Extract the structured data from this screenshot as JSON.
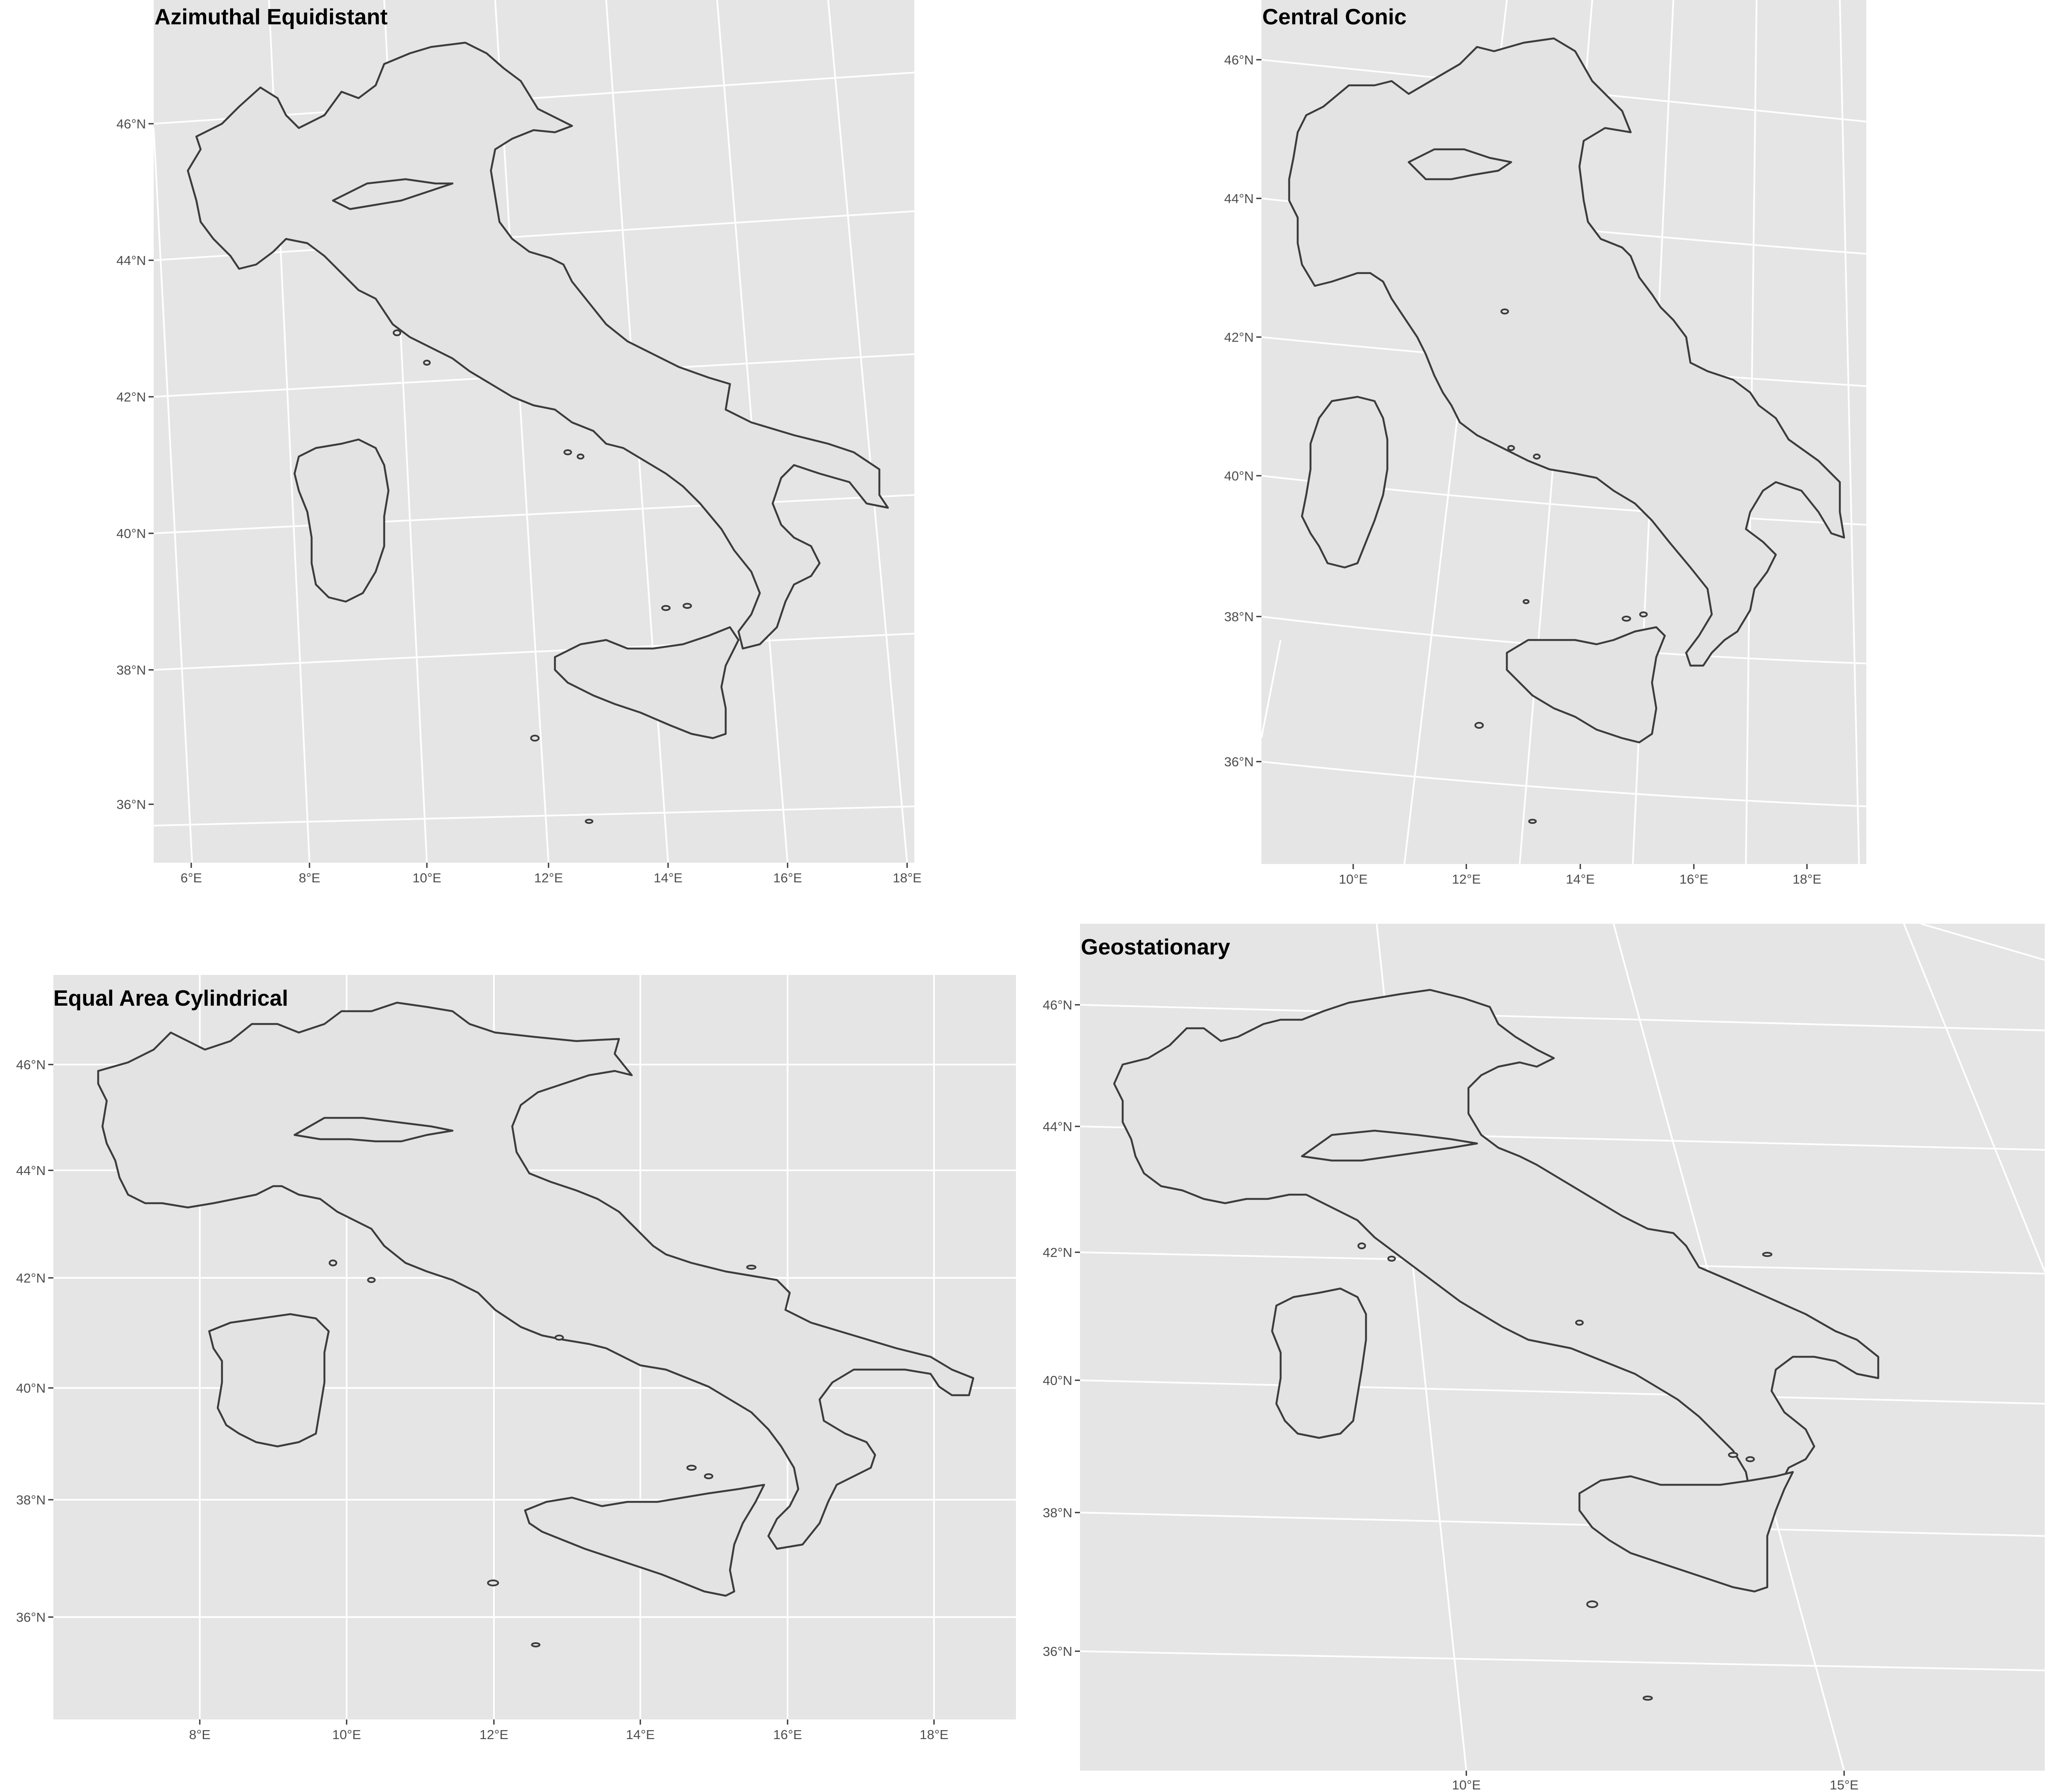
{
  "maps": [
    {
      "id": "azimuthal",
      "title": "Azimuthal Equidistant",
      "lat_labels": [
        "36°N",
        "38°N",
        "40°N",
        "42°N",
        "44°N",
        "46°N"
      ],
      "lon_labels": [
        "6°E",
        "8°E",
        "10°E",
        "12°E",
        "14°E",
        "16°E",
        "18°E"
      ]
    },
    {
      "id": "conic",
      "title": "Central Conic",
      "lat_labels": [
        "36°N",
        "38°N",
        "40°N",
        "42°N",
        "44°N",
        "46°N"
      ],
      "lon_labels": [
        "10°E",
        "12°E",
        "14°E",
        "16°E",
        "18°E"
      ]
    },
    {
      "id": "cylindrical",
      "title": "Equal Area Cylindrical",
      "lat_labels": [
        "36°N",
        "38°N",
        "40°N",
        "42°N",
        "44°N",
        "46°N"
      ],
      "lon_labels": [
        "8°E",
        "10°E",
        "12°E",
        "14°E",
        "16°E",
        "18°E"
      ]
    },
    {
      "id": "geostationary",
      "title": "Geostationary",
      "lat_labels": [
        "36°N",
        "38°N",
        "40°N",
        "42°N",
        "44°N",
        "46°N"
      ],
      "lon_labels": [
        "10°E",
        "15°E"
      ]
    }
  ],
  "colors": {
    "panel_bg": "#e5e5e5",
    "grid": "#ffffff",
    "land_fill": "#e3e3e3",
    "outline": "#3c3c3c"
  }
}
